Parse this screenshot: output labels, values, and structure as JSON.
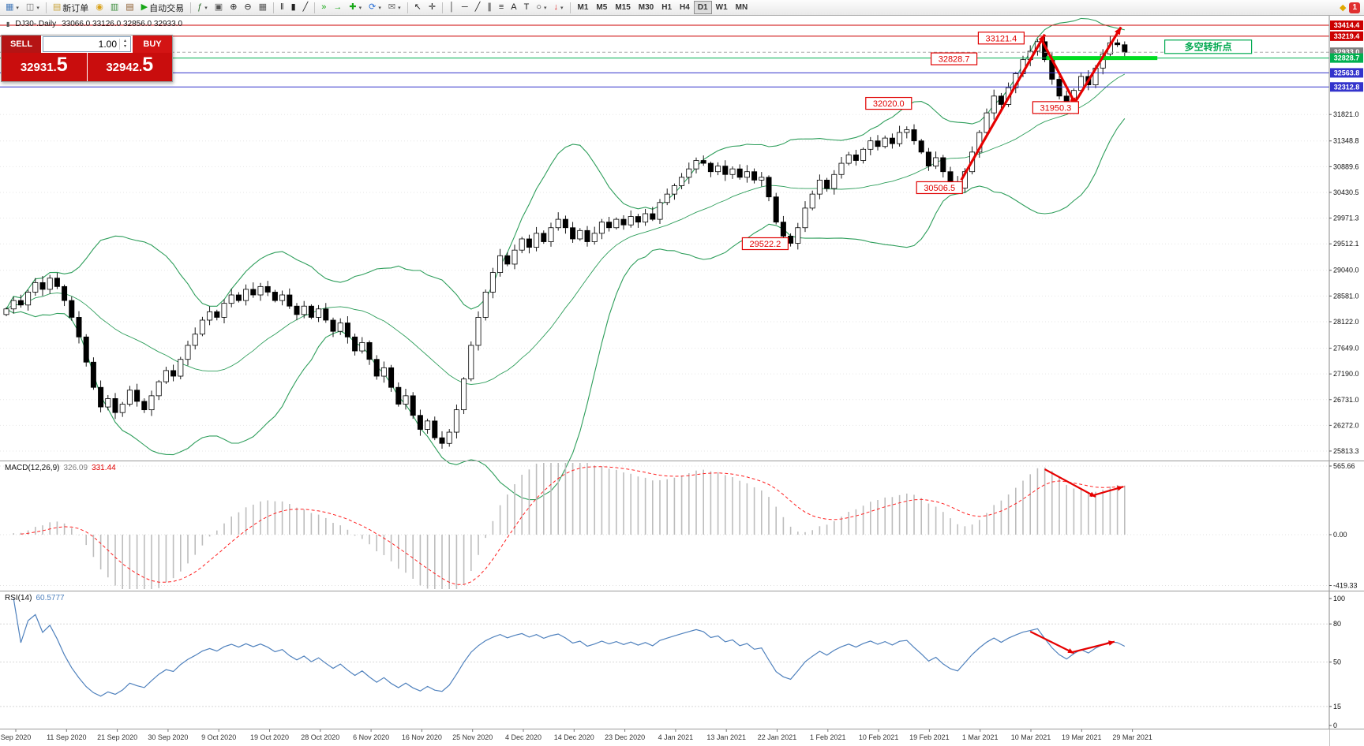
{
  "toolbar": {
    "new_order_label": "新订单",
    "auto_trading_label": "自动交易",
    "timeframes": [
      "M1",
      "M5",
      "M15",
      "M30",
      "H1",
      "H4",
      "D1",
      "W1",
      "MN"
    ],
    "active_timeframe": "D1",
    "notification_count": "1"
  },
  "chart_header": {
    "symbol": "DJ30-.Daily",
    "ohlc": "33066.0 33126.0 32856.0 32933.0"
  },
  "trade_panel": {
    "sell_label": "SELL",
    "buy_label": "BUY",
    "volume": "1.00",
    "sell_price": "32931.",
    "sell_price_frac": "5",
    "buy_price": "32942.",
    "buy_price_frac": "5"
  },
  "chart_data": {
    "type": "candlestick",
    "symbol": "DJ30-",
    "timeframe": "Daily",
    "today_ohlc": {
      "open": 33066.0,
      "high": 33126.0,
      "low": 32856.0,
      "close": 32933.0
    },
    "first_open": 28250,
    "closes": [
      28350,
      28500,
      28420,
      28650,
      28820,
      28700,
      28900,
      28750,
      28500,
      28200,
      27850,
      27400,
      26950,
      26600,
      26750,
      26500,
      26650,
      26900,
      26700,
      26550,
      26800,
      27050,
      27250,
      27150,
      27450,
      27700,
      27900,
      28150,
      28300,
      28200,
      28450,
      28600,
      28500,
      28700,
      28600,
      28750,
      28650,
      28500,
      28600,
      28400,
      28250,
      28400,
      28200,
      28350,
      28150,
      27950,
      28100,
      27850,
      27600,
      27750,
      27450,
      27150,
      27300,
      26950,
      26650,
      26800,
      26450,
      26200,
      26350,
      26050,
      25950,
      26150,
      26550,
      27100,
      27700,
      28200,
      28650,
      29000,
      29300,
      29150,
      29400,
      29600,
      29450,
      29700,
      29550,
      29800,
      29950,
      29800,
      29600,
      29750,
      29550,
      29700,
      29900,
      29800,
      29950,
      29850,
      30000,
      29900,
      30050,
      29950,
      30250,
      30400,
      30550,
      30700,
      30850,
      31000,
      30950,
      30800,
      30900,
      30750,
      30850,
      30700,
      30800,
      30650,
      30700,
      30350,
      29900,
      29650,
      29522,
      29800,
      30150,
      30400,
      30650,
      30500,
      30750,
      30950,
      31100,
      31000,
      31200,
      31350,
      31250,
      31400,
      31300,
      31500,
      31550,
      31350,
      31150,
      30900,
      31050,
      30800,
      30600,
      30506,
      30800,
      31150,
      31500,
      31850,
      32150,
      32000,
      32300,
      32550,
      32800,
      32950,
      33121,
      32800,
      32450,
      32150,
      31950,
      32250,
      32500,
      32350,
      32650,
      32900,
      33100,
      33066,
      32933
    ],
    "x_labels": [
      "Sep 2020",
      "11 Sep 2020",
      "21 Sep 2020",
      "30 Sep 2020",
      "9 Oct 2020",
      "19 Oct 2020",
      "28 Oct 2020",
      "6 Nov 2020",
      "16 Nov 2020",
      "25 Nov 2020",
      "4 Dec 2020",
      "14 Dec 2020",
      "23 Dec 2020",
      "4 Jan 2021",
      "13 Jan 2021",
      "22 Jan 2021",
      "1 Feb 2021",
      "10 Feb 2021",
      "19 Feb 2021",
      "1 Mar 2021",
      "10 Mar 2021",
      "19 Mar 2021",
      "29 Mar 2021"
    ],
    "y_axis_labels": [
      "31821.0",
      "31348.8",
      "30889.6",
      "30430.5",
      "29971.3",
      "29512.1",
      "29040.0",
      "28581.0",
      "28122.0",
      "27649.0",
      "27190.0",
      "26731.0",
      "26272.0",
      "25813.3"
    ],
    "h_lines": [
      {
        "price": 33414.4,
        "color": "#cc0000",
        "style": "solid",
        "label": "33414.4",
        "label_bg": "#cc0000"
      },
      {
        "price": 33219.4,
        "color": "#cc0000",
        "style": "solid",
        "label": "33219.4",
        "label_bg": "#cc0000"
      },
      {
        "price": 32933.0,
        "color": "#a8a8a8",
        "style": "dash",
        "label": "32933.0",
        "label_bg": "#7f7f7f"
      },
      {
        "price": 32828.7,
        "color": "#00b050",
        "style": "solid",
        "label": "32828.7",
        "label_bg": "#00b050"
      },
      {
        "price": 32563.8,
        "color": "#3333cc",
        "style": "solid",
        "label": "32563.8",
        "label_bg": "#3333cc"
      },
      {
        "price": 32312.8,
        "color": "#3333cc",
        "style": "solid",
        "label": "32312.8",
        "label_bg": "#3333cc"
      }
    ],
    "highlight_segment": {
      "price": 32828.7,
      "from_index": 143.2,
      "to_index": 158.5,
      "color": "#00dd22",
      "width": 5
    },
    "annotations": [
      {
        "text": "33121.4",
        "idx": 137,
        "price": 33185,
        "type": "price"
      },
      {
        "text": "32828.7",
        "idx": 130.5,
        "price": 32815,
        "type": "price"
      },
      {
        "text": "32020.0",
        "idx": 121.5,
        "price": 32020,
        "type": "price"
      },
      {
        "text": "31950.3",
        "idx": 144.5,
        "price": 31945,
        "type": "price"
      },
      {
        "text": "30506.5",
        "idx": 128.5,
        "price": 30515,
        "type": "price"
      },
      {
        "text": "29522.2",
        "idx": 104.5,
        "price": 29515,
        "type": "price"
      },
      {
        "text": "多空转折点",
        "idx": 165.5,
        "price": 33030,
        "type": "note"
      }
    ],
    "trend_arrows": {
      "color": "#e60000",
      "main": [
        {
          "from": [
            131.5,
            30650
          ],
          "to": [
            143,
            33250
          ]
        },
        {
          "from": [
            142.7,
            33120
          ],
          "to": [
            147.3,
            31990
          ]
        },
        {
          "from": [
            146.8,
            31960
          ],
          "to": [
            153.5,
            33380
          ]
        }
      ],
      "macd": [
        {
          "from": [
            143,
            539
          ],
          "to": [
            150,
            312
          ]
        },
        {
          "from": [
            149.3,
            318
          ],
          "to": [
            153.8,
            395
          ]
        }
      ],
      "rsi": [
        {
          "from": [
            141,
            74
          ],
          "to": [
            147,
            57
          ]
        },
        {
          "from": [
            146.6,
            57.5
          ],
          "to": [
            152.6,
            66
          ]
        }
      ]
    },
    "indicators": {
      "bollinger": {
        "period": 20,
        "deviation": 2,
        "color": "#2e9e5b"
      },
      "macd": {
        "label": "MACD(12,26,9)",
        "value_main": "326.09",
        "value_signal": "331.44",
        "scale_labels": [
          "565.66",
          "0.00",
          "-419.33"
        ]
      },
      "rsi": {
        "label": "RSI(14)",
        "value": "60.5777",
        "scale_labels": [
          "100",
          "80",
          "50",
          "15",
          "0"
        ],
        "levels": [
          80,
          50,
          15
        ]
      }
    }
  }
}
